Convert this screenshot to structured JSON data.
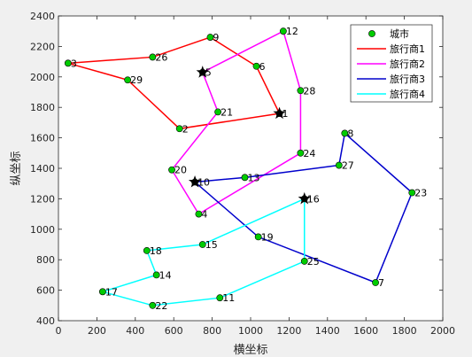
{
  "chart_data": {
    "type": "line",
    "title": "",
    "xlabel": "横坐标",
    "ylabel": "纵坐标",
    "xlim": [
      0,
      2000
    ],
    "ylim": [
      400,
      2400
    ],
    "xticks": [
      0,
      200,
      400,
      600,
      800,
      1000,
      1200,
      1400,
      1600,
      1800,
      2000
    ],
    "yticks": [
      400,
      600,
      800,
      1000,
      1200,
      1400,
      1600,
      1800,
      2000,
      2200,
      2400
    ],
    "grid": false,
    "legend_position": "top-right",
    "city_legend": "城市",
    "city_marker_color": "#00cc00",
    "depot_marker_color": "#000000",
    "cities": [
      {
        "id": "1",
        "x": 1150,
        "y": 1760
      },
      {
        "id": "2",
        "x": 630,
        "y": 1660
      },
      {
        "id": "3",
        "x": 50,
        "y": 2090
      },
      {
        "id": "4",
        "x": 730,
        "y": 1100
      },
      {
        "id": "5",
        "x": 750,
        "y": 2030
      },
      {
        "id": "6",
        "x": 1030,
        "y": 2070
      },
      {
        "id": "7",
        "x": 1650,
        "y": 650
      },
      {
        "id": "8",
        "x": 1490,
        "y": 1630
      },
      {
        "id": "9",
        "x": 790,
        "y": 2260
      },
      {
        "id": "10",
        "x": 710,
        "y": 1310
      },
      {
        "id": "11",
        "x": 840,
        "y": 550
      },
      {
        "id": "12",
        "x": 1170,
        "y": 2300
      },
      {
        "id": "13",
        "x": 970,
        "y": 1340
      },
      {
        "id": "14",
        "x": 510,
        "y": 700
      },
      {
        "id": "15",
        "x": 750,
        "y": 900
      },
      {
        "id": "16",
        "x": 1280,
        "y": 1200
      },
      {
        "id": "17",
        "x": 230,
        "y": 590
      },
      {
        "id": "18",
        "x": 460,
        "y": 860
      },
      {
        "id": "19",
        "x": 1040,
        "y": 950
      },
      {
        "id": "20",
        "x": 590,
        "y": 1390
      },
      {
        "id": "21",
        "x": 830,
        "y": 1770
      },
      {
        "id": "22",
        "x": 490,
        "y": 500
      },
      {
        "id": "23",
        "x": 1840,
        "y": 1240
      },
      {
        "id": "24",
        "x": 1260,
        "y": 1500
      },
      {
        "id": "25",
        "x": 1280,
        "y": 790
      },
      {
        "id": "26",
        "x": 490,
        "y": 2130
      },
      {
        "id": "27",
        "x": 1460,
        "y": 1420
      },
      {
        "id": "28",
        "x": 1260,
        "y": 1910
      },
      {
        "id": "29",
        "x": 360,
        "y": 1980
      }
    ],
    "depots": [
      {
        "x": 750,
        "y": 2030
      },
      {
        "x": 1150,
        "y": 1760
      },
      {
        "x": 710,
        "y": 1310
      },
      {
        "x": 1280,
        "y": 1200
      }
    ],
    "series": [
      {
        "name": "旅行商1",
        "color": "#ff0000",
        "route": [
          "1",
          "6",
          "9",
          "26",
          "3",
          "29",
          "2",
          "1"
        ]
      },
      {
        "name": "旅行商2",
        "color": "#ff00ff",
        "route": [
          "5",
          "12",
          "28",
          "24",
          "4",
          "20",
          "21",
          "5"
        ]
      },
      {
        "name": "旅行商3",
        "color": "#0000cc",
        "route": [
          "10",
          "13",
          "27",
          "8",
          "23",
          "7",
          "19",
          "10"
        ]
      },
      {
        "name": "旅行商4",
        "color": "#00ffff",
        "route": [
          "16",
          "25",
          "11",
          "22",
          "17",
          "14",
          "18",
          "15",
          "16"
        ]
      }
    ]
  }
}
